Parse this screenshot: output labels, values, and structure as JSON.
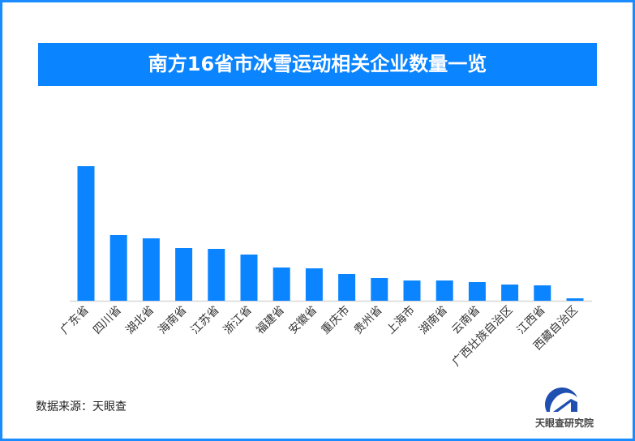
{
  "title": "南方16省市冰雪运动相关企业数量一览",
  "source": "数据来源：天眼查",
  "logo_text": "天眼查研究院",
  "colors": {
    "bar": "#0a84ff",
    "title_bg": "#0a84ff",
    "frame": "#1a8cff"
  },
  "chart_data": {
    "type": "bar",
    "title": "南方16省市冰雪运动相关企业数量一览",
    "categories": [
      "广东省",
      "四川省",
      "湖北省",
      "海南省",
      "江苏省",
      "浙江省",
      "福建省",
      "安徽省",
      "重庆市",
      "贵州省",
      "上海市",
      "湖南省",
      "云南省",
      "广西壮族自治区",
      "江西省",
      "西藏自治区"
    ],
    "values": [
      166,
      81,
      77,
      65,
      64,
      57,
      41,
      40,
      33,
      28,
      25,
      25,
      23,
      20,
      19,
      3
    ],
    "value_note_unlabeled": true,
    "ylim": [
      0,
      166
    ],
    "grid": false,
    "xlabel": "",
    "ylabel": ""
  }
}
